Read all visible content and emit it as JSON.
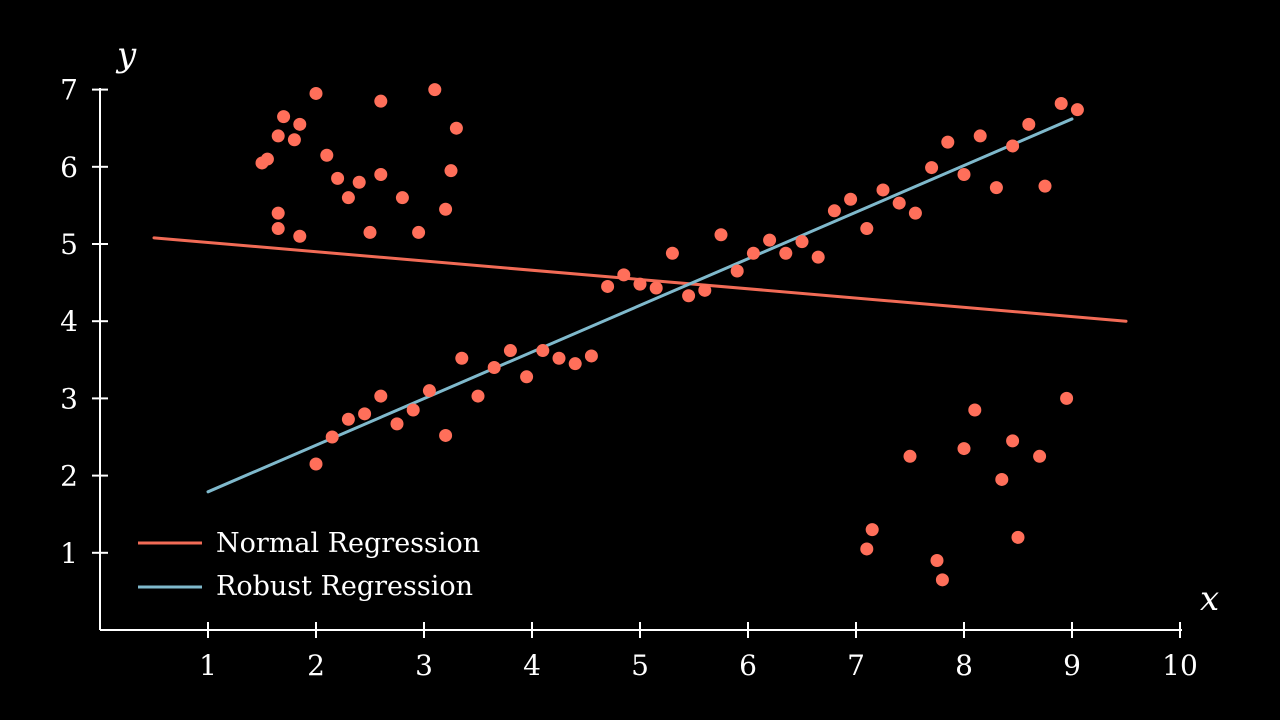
{
  "chart_data": {
    "type": "scatter",
    "xlabel": "x",
    "ylabel": "y",
    "xlim": [
      0,
      10
    ],
    "ylim": [
      0,
      7
    ],
    "xticks": [
      1,
      2,
      3,
      4,
      5,
      6,
      7,
      8,
      9,
      10
    ],
    "yticks": [
      1,
      2,
      3,
      4,
      5,
      6,
      7
    ],
    "grid": false,
    "legend_position": "bottom-left",
    "colors": {
      "points": "#ff6f5a",
      "normal": "#f26b56",
      "robust": "#7fb9cc",
      "axes": "#ffffff",
      "background": "#000000"
    },
    "points": [
      [
        1.5,
        6.05
      ],
      [
        1.55,
        6.1
      ],
      [
        1.65,
        6.4
      ],
      [
        1.7,
        6.65
      ],
      [
        1.8,
        6.35
      ],
      [
        1.85,
        6.55
      ],
      [
        1.65,
        5.4
      ],
      [
        1.65,
        5.2
      ],
      [
        1.85,
        5.1
      ],
      [
        2.0,
        6.95
      ],
      [
        2.1,
        6.15
      ],
      [
        2.2,
        5.85
      ],
      [
        2.3,
        5.6
      ],
      [
        2.4,
        5.8
      ],
      [
        2.5,
        5.15
      ],
      [
        2.6,
        6.85
      ],
      [
        2.6,
        5.9
      ],
      [
        2.8,
        5.6
      ],
      [
        2.95,
        5.15
      ],
      [
        3.1,
        7.0
      ],
      [
        3.2,
        5.45
      ],
      [
        3.25,
        5.95
      ],
      [
        3.3,
        6.5
      ],
      [
        2.0,
        2.15
      ],
      [
        2.15,
        2.5
      ],
      [
        2.3,
        2.73
      ],
      [
        2.45,
        2.8
      ],
      [
        2.6,
        3.03
      ],
      [
        2.75,
        2.67
      ],
      [
        2.9,
        2.85
      ],
      [
        3.05,
        3.1
      ],
      [
        3.2,
        2.52
      ],
      [
        3.35,
        3.52
      ],
      [
        3.5,
        3.03
      ],
      [
        3.65,
        3.4
      ],
      [
        3.8,
        3.62
      ],
      [
        3.95,
        3.28
      ],
      [
        4.1,
        3.62
      ],
      [
        4.25,
        3.52
      ],
      [
        4.4,
        3.45
      ],
      [
        4.55,
        3.55
      ],
      [
        4.7,
        4.45
      ],
      [
        4.85,
        4.6
      ],
      [
        5.0,
        4.48
      ],
      [
        5.15,
        4.43
      ],
      [
        5.3,
        4.88
      ],
      [
        5.45,
        4.33
      ],
      [
        5.6,
        4.4
      ],
      [
        5.75,
        5.12
      ],
      [
        5.9,
        4.65
      ],
      [
        6.05,
        4.88
      ],
      [
        6.2,
        5.05
      ],
      [
        6.35,
        4.88
      ],
      [
        6.5,
        5.03
      ],
      [
        6.65,
        4.83
      ],
      [
        6.8,
        5.43
      ],
      [
        6.95,
        5.58
      ],
      [
        7.1,
        5.2
      ],
      [
        7.25,
        5.7
      ],
      [
        7.4,
        5.53
      ],
      [
        7.55,
        5.4
      ],
      [
        7.7,
        5.99
      ],
      [
        7.85,
        6.32
      ],
      [
        8.0,
        5.9
      ],
      [
        8.15,
        6.4
      ],
      [
        8.3,
        5.73
      ],
      [
        8.45,
        6.27
      ],
      [
        8.6,
        6.55
      ],
      [
        8.75,
        5.75
      ],
      [
        8.9,
        6.82
      ],
      [
        9.05,
        6.74
      ],
      [
        7.1,
        1.05
      ],
      [
        7.15,
        1.3
      ],
      [
        7.5,
        2.25
      ],
      [
        7.75,
        0.9
      ],
      [
        7.8,
        0.65
      ],
      [
        8.0,
        2.35
      ],
      [
        8.1,
        2.85
      ],
      [
        8.35,
        1.95
      ],
      [
        8.45,
        2.45
      ],
      [
        8.5,
        1.2
      ],
      [
        8.7,
        2.25
      ],
      [
        8.95,
        3.0
      ]
    ],
    "series": [
      {
        "name": "Normal Regression",
        "x": [
          0.5,
          9.5
        ],
        "y": [
          5.08,
          4.0
        ]
      },
      {
        "name": "Robust Regression",
        "x": [
          1.0,
          9.0
        ],
        "y": [
          1.79,
          6.62
        ]
      }
    ]
  }
}
